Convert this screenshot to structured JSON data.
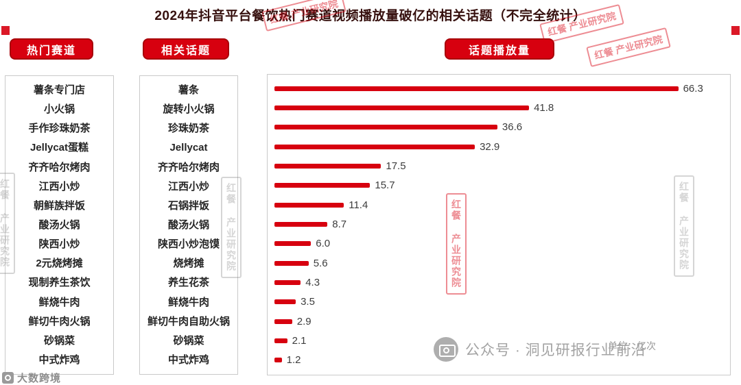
{
  "title": "2024年抖音平台餐饮热门赛道视频播放量破亿的相关话题（不完全统计）",
  "badges": {
    "tracks": "热门赛道",
    "topics": "相关话题",
    "plays": "话题播放量"
  },
  "chart_data": {
    "type": "bar",
    "orientation": "horizontal",
    "title": "话题播放量",
    "unit_label": "单位：亿次",
    "xlim": [
      0,
      70
    ],
    "bar_color": "#d7000f",
    "tracks": [
      "薯条专门店",
      "小火锅",
      "手作珍珠奶茶",
      "Jellycat蛋糕",
      "齐齐哈尔烤肉",
      "江西小炒",
      "朝鲜族拌饭",
      "酸汤火锅",
      "陕西小炒",
      "2元烧烤摊",
      "现制养生茶饮",
      "鲜烧牛肉",
      "鲜切牛肉火锅",
      "砂锅菜",
      "中式炸鸡"
    ],
    "categories": [
      "薯条",
      "旋转小火锅",
      "珍珠奶茶",
      "Jellycat",
      "齐齐哈尔烤肉",
      "江西小炒",
      "石锅拌饭",
      "酸汤火锅",
      "陕西小炒泡馍",
      "烧烤摊",
      "养生花茶",
      "鲜烧牛肉",
      "鲜切牛肉自助火锅",
      "砂锅菜",
      "中式炸鸡"
    ],
    "values": [
      66.3,
      41.8,
      36.6,
      32.9,
      17.5,
      15.7,
      11.4,
      8.7,
      6.0,
      5.6,
      4.3,
      3.5,
      2.9,
      2.1,
      1.2
    ]
  },
  "watermarks": {
    "stamp": "红餐 产业研究院",
    "account": "公众号 · 洞见研报行业前沿",
    "brand": "大数跨境"
  },
  "colors": {
    "accent": "#d7000f",
    "title_color": "#36100e"
  }
}
